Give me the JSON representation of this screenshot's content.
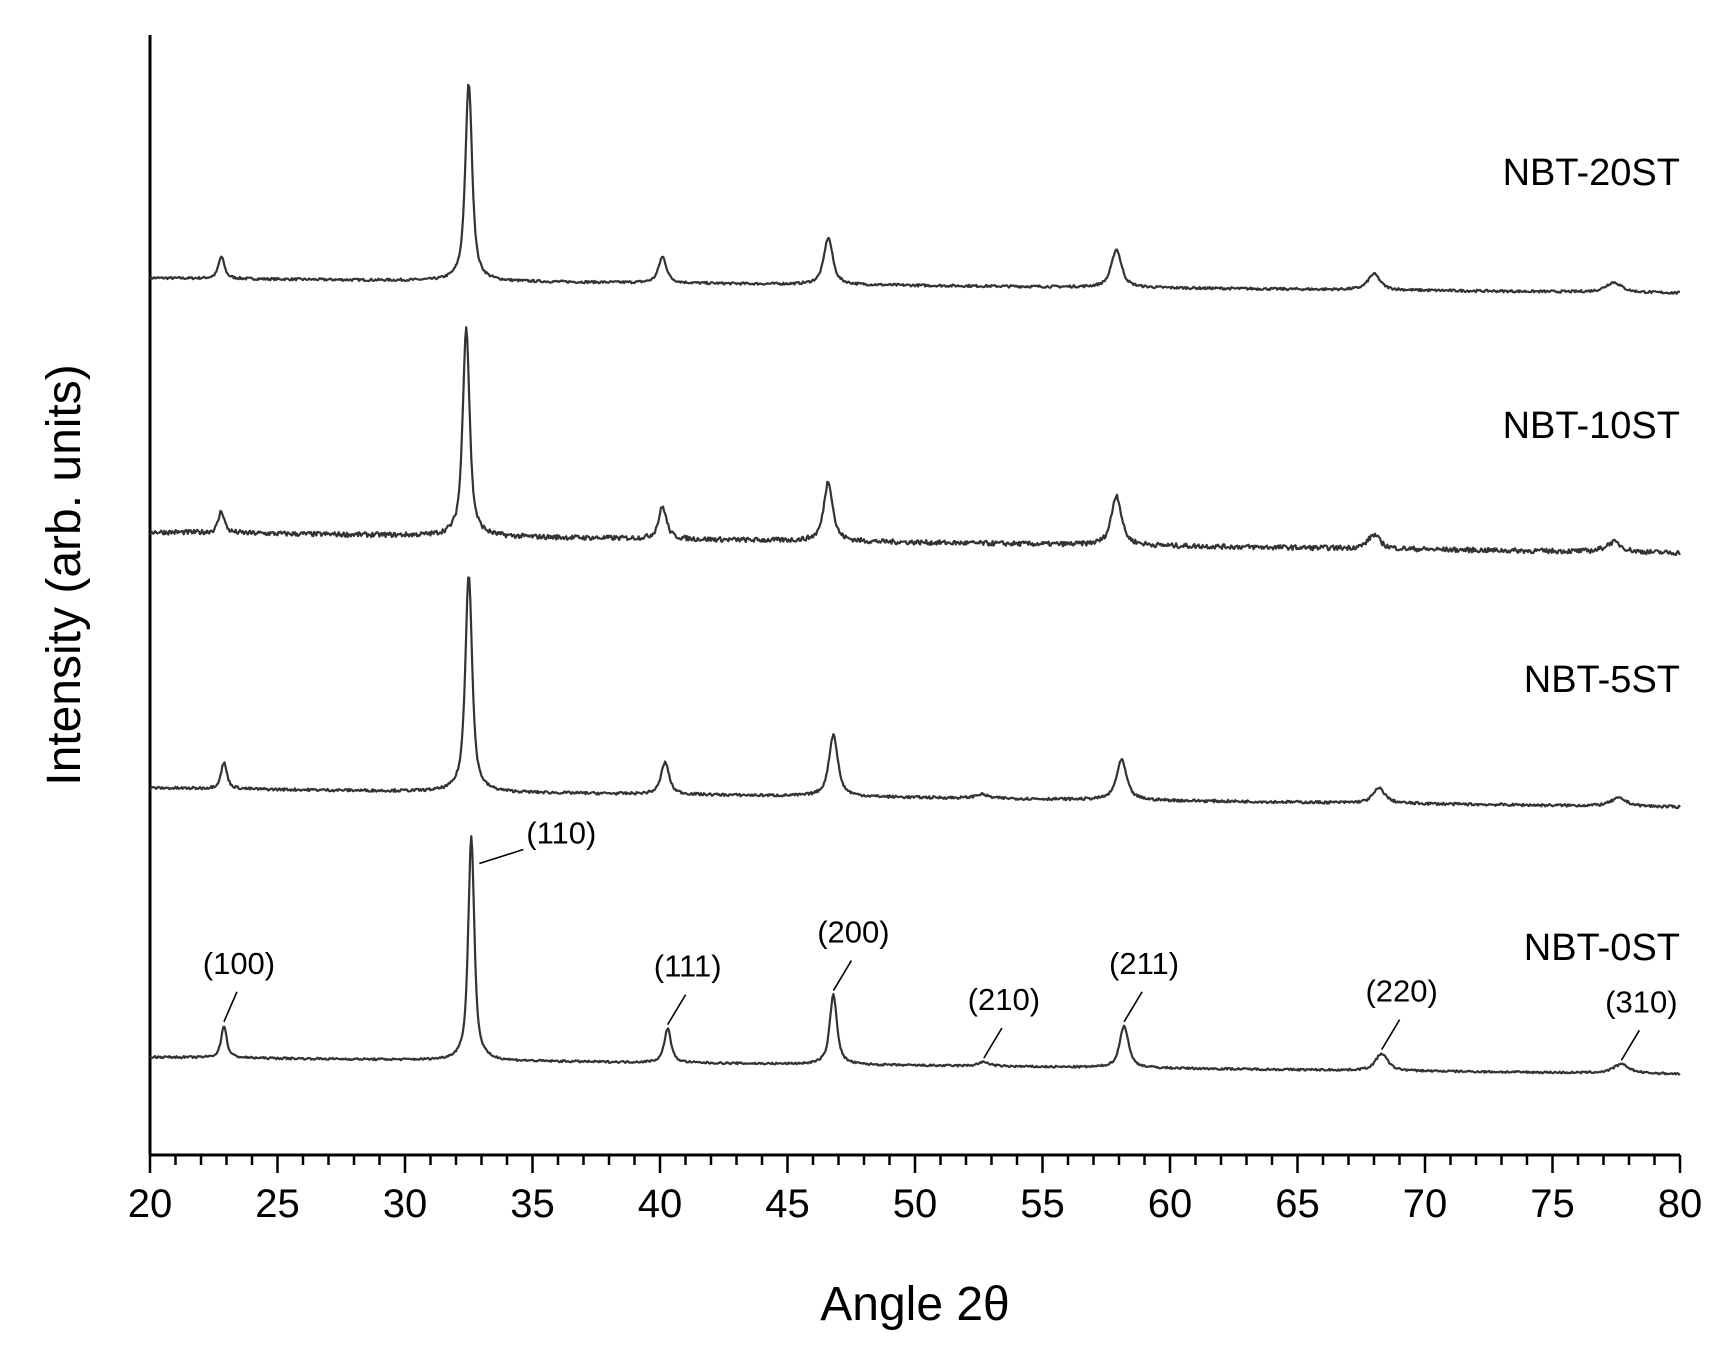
{
  "chart_data": {
    "type": "line",
    "title": "",
    "xlabel": "Angle 2θ",
    "ylabel": "Intensity (arb. units)",
    "xlim": [
      20,
      80
    ],
    "xticks": [
      20,
      25,
      30,
      35,
      40,
      45,
      50,
      55,
      60,
      65,
      70,
      75,
      80
    ],
    "xticks_minor_step": 1,
    "yticks_shown": false,
    "grid": false,
    "legend": "none (series labelled inline at right)",
    "series": [
      {
        "name": "NBT-20ST",
        "baseline_start": 22,
        "baseline_end": 7,
        "noise": 1.2,
        "peaks": [
          {
            "x": 22.8,
            "h": 22,
            "w": 0.15
          },
          {
            "x": 32.5,
            "h": 198,
            "w": 0.17
          },
          {
            "x": 40.1,
            "h": 26,
            "w": 0.2
          },
          {
            "x": 46.6,
            "h": 47,
            "w": 0.22
          },
          {
            "x": 57.9,
            "h": 38,
            "w": 0.25
          },
          {
            "x": 68.0,
            "h": 16,
            "w": 0.3
          },
          {
            "x": 77.4,
            "h": 10,
            "w": 0.4
          }
        ]
      },
      {
        "name": "NBT-10ST",
        "baseline_start": 28,
        "baseline_end": 7,
        "noise": 2.4,
        "peaks": [
          {
            "x": 22.8,
            "h": 22,
            "w": 0.15
          },
          {
            "x": 32.4,
            "h": 210,
            "w": 0.17
          },
          {
            "x": 40.1,
            "h": 32,
            "w": 0.2
          },
          {
            "x": 46.6,
            "h": 60,
            "w": 0.22
          },
          {
            "x": 57.9,
            "h": 50,
            "w": 0.25
          },
          {
            "x": 68.0,
            "h": 14,
            "w": 0.3
          },
          {
            "x": 77.4,
            "h": 10,
            "w": 0.4
          }
        ]
      },
      {
        "name": "NBT-5ST",
        "baseline_start": 27,
        "baseline_end": 8,
        "noise": 1.3,
        "peaks": [
          {
            "x": 22.9,
            "h": 26,
            "w": 0.15
          },
          {
            "x": 32.5,
            "h": 218,
            "w": 0.17
          },
          {
            "x": 40.2,
            "h": 32,
            "w": 0.2
          },
          {
            "x": 46.8,
            "h": 62,
            "w": 0.22
          },
          {
            "x": 52.6,
            "h": 4,
            "w": 0.3
          },
          {
            "x": 58.1,
            "h": 40,
            "w": 0.25
          },
          {
            "x": 68.2,
            "h": 15,
            "w": 0.3
          },
          {
            "x": 77.6,
            "h": 8,
            "w": 0.4
          }
        ]
      },
      {
        "name": "NBT-0ST",
        "baseline_start": 25,
        "baseline_end": 8,
        "noise": 1.0,
        "peaks": [
          {
            "x": 22.9,
            "h": 32,
            "w": 0.14
          },
          {
            "x": 32.6,
            "h": 225,
            "w": 0.15
          },
          {
            "x": 40.3,
            "h": 34,
            "w": 0.17
          },
          {
            "x": 46.8,
            "h": 70,
            "w": 0.18
          },
          {
            "x": 52.7,
            "h": 4,
            "w": 0.3
          },
          {
            "x": 58.2,
            "h": 42,
            "w": 0.22
          },
          {
            "x": 68.3,
            "h": 17,
            "w": 0.3
          },
          {
            "x": 77.7,
            "h": 9,
            "w": 0.4
          }
        ]
      }
    ],
    "annotations": [
      {
        "text": "(100)",
        "x": 22.9,
        "series": "NBT-0ST"
      },
      {
        "text": "(110)",
        "x": 32.6,
        "series": "NBT-0ST"
      },
      {
        "text": "(111)",
        "x": 40.3,
        "series": "NBT-0ST"
      },
      {
        "text": "(200)",
        "x": 46.8,
        "series": "NBT-0ST"
      },
      {
        "text": "(210)",
        "x": 52.7,
        "series": "NBT-0ST"
      },
      {
        "text": "(211)",
        "x": 58.2,
        "series": "NBT-0ST"
      },
      {
        "text": "(220)",
        "x": 68.3,
        "series": "NBT-0ST"
      },
      {
        "text": "(310)",
        "x": 77.7,
        "series": "NBT-0ST"
      }
    ]
  }
}
